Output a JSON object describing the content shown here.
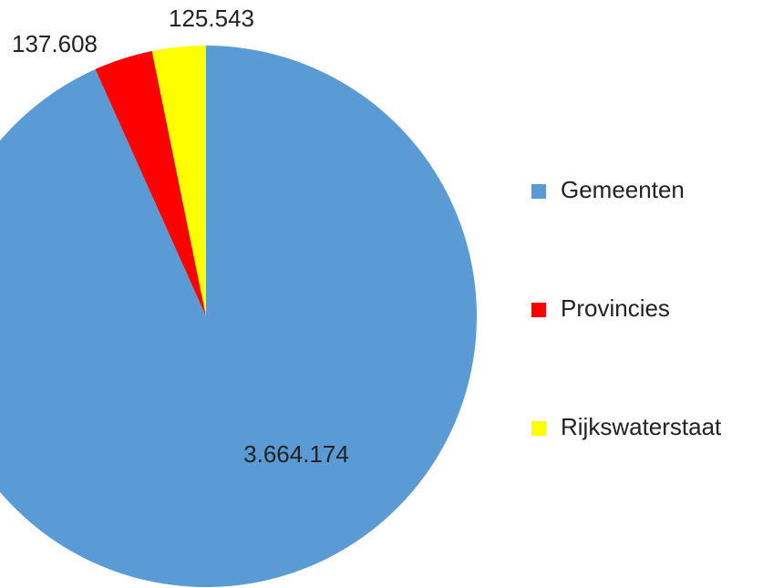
{
  "chart_data": {
    "type": "pie",
    "categories": [
      "Gemeenten",
      "Provincies",
      "Rijkswaterstaat"
    ],
    "values": [
      3664174,
      137608,
      125543
    ],
    "value_labels": [
      "3.664.174",
      "137.608",
      "125.543"
    ],
    "colors": [
      "#5b9bd5",
      "#ff0000",
      "#ffff00"
    ],
    "legend": "right"
  }
}
